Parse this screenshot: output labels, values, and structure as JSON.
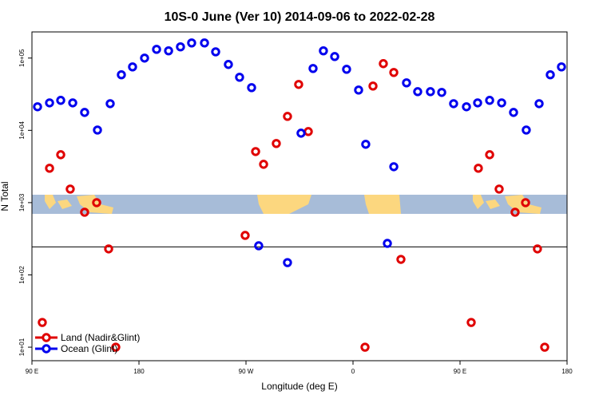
{
  "chart_data": {
    "type": "scatter",
    "title": "10S-0 June (Ver 10)   2014-09-06 to 2022-02-28",
    "x_label": "Longitude (deg E)",
    "y_label": "N Total",
    "log_y": true,
    "legend": "bottomleft",
    "hline": 244,
    "xlim": [
      90,
      540
    ],
    "ylim": [
      6.5,
      230000
    ],
    "xticks": [
      {
        "value": 90,
        "label": "90 E"
      },
      {
        "value": 180,
        "label": "180"
      },
      {
        "value": 270,
        "label": "90 W"
      },
      {
        "value": 360,
        "label": "0"
      },
      {
        "value": 450,
        "label": "90 E"
      },
      {
        "value": 540,
        "label": "180"
      }
    ],
    "yticks": [
      {
        "value": 10,
        "label": "1e+01"
      },
      {
        "value": 100,
        "label": "1e+02"
      },
      {
        "value": 1000,
        "label": "1e+03"
      },
      {
        "value": 10000,
        "label": "1e+04"
      },
      {
        "value": 100000,
        "label": "1e+05"
      }
    ],
    "series": [
      {
        "name": "Land (Nadir&Glint)",
        "color": "#e00000",
        "x": [
          98.7,
          104.8,
          114.2,
          122.2,
          134.3,
          144.4,
          154.5,
          160.5,
          269.3,
          278.1,
          284.8,
          295.5,
          304.9,
          314.3,
          322.4,
          370.1,
          376.8,
          385.5,
          394.3,
          400.3,
          459.4,
          465.4,
          474.9,
          482.9,
          496.3,
          505.1,
          515.1,
          521.2
        ],
        "values": [
          22,
          2990,
          4600,
          1540,
          736,
          1000,
          229,
          10,
          352,
          5090,
          3390,
          6580,
          15600,
          43200,
          9620,
          10,
          41000,
          83700,
          63200,
          164,
          22,
          2990,
          4600,
          1540,
          736,
          1000,
          229,
          10
        ]
      },
      {
        "name": "Ocean (Glint)",
        "color": "#0000ee",
        "x": [
          94.7,
          104.8,
          114.2,
          124.3,
          134.3,
          145.1,
          155.8,
          165.2,
          174.6,
          184.7,
          194.8,
          204.9,
          214.9,
          224.3,
          235.1,
          244.5,
          255.2,
          264.6,
          274.7,
          280.7,
          304.9,
          316.3,
          326.4,
          335.1,
          344.6,
          354.6,
          364.7,
          370.7,
          388.9,
          394.3,
          405.0,
          414.4,
          425.1,
          434.6,
          444.6,
          455.4,
          464.8,
          474.9,
          485.0,
          495.0,
          505.7,
          516.5,
          525.9,
          535.3
        ],
        "values": [
          21200,
          24000,
          26000,
          24000,
          17700,
          10100,
          23400,
          58700,
          75500,
          100000,
          132000,
          126000,
          143000,
          162000,
          162000,
          122000,
          81600,
          54300,
          39000,
          253,
          148,
          9140,
          71800,
          126000,
          105000,
          70000,
          36100,
          6420,
          273,
          3140,
          45400,
          34300,
          34300,
          33500,
          23400,
          21200,
          24000,
          26000,
          24000,
          17700,
          10100,
          23400,
          58700,
          75500
        ]
      }
    ]
  }
}
